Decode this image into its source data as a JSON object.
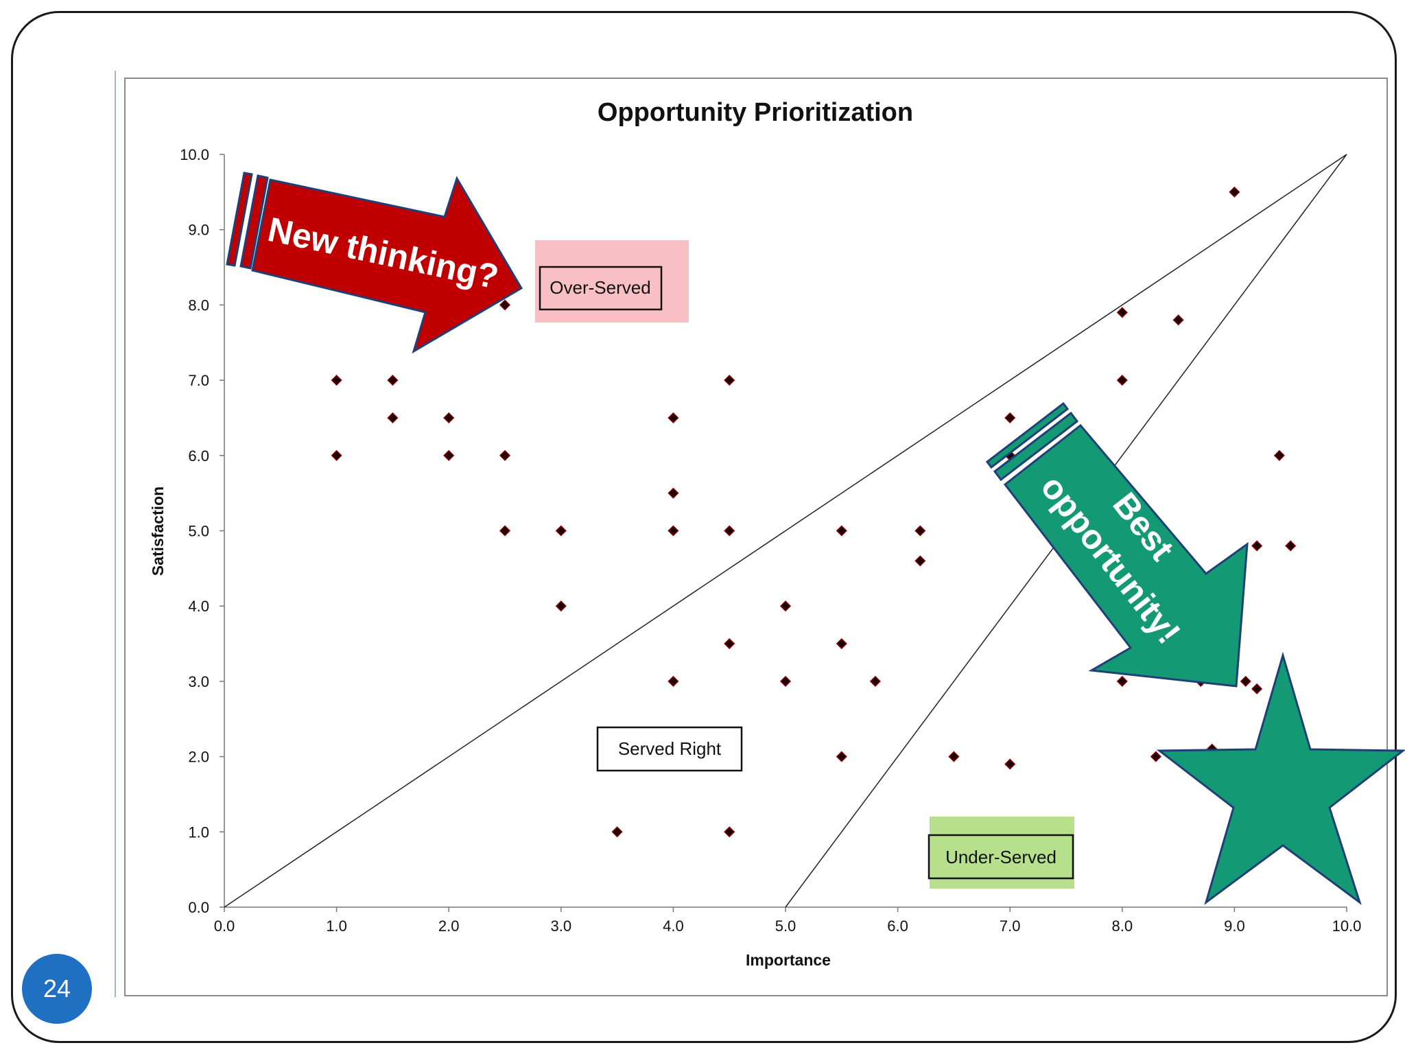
{
  "page_number": "24",
  "colors": {
    "frame": "#1a1a1a",
    "badge": "#1f6fc3",
    "marker": "#1a0000",
    "marker_outline": "#8b0000",
    "red_arrow": "#c00000",
    "green_arrow": "#139a74",
    "overserved_bg": "#f8c0c4",
    "underserved_bg": "#b6e08c"
  },
  "chart_data": {
    "type": "scatter",
    "title": "Opportunity Prioritization",
    "xlabel": "Importance",
    "ylabel": "Satisfaction",
    "xlim": [
      0,
      10
    ],
    "ylim": [
      0,
      10
    ],
    "x_ticks": [
      "0.0",
      "1.0",
      "2.0",
      "3.0",
      "4.0",
      "5.0",
      "6.0",
      "7.0",
      "8.0",
      "9.0",
      "10.0"
    ],
    "y_ticks": [
      "0.0",
      "1.0",
      "2.0",
      "3.0",
      "4.0",
      "5.0",
      "6.0",
      "7.0",
      "8.0",
      "9.0",
      "10.0"
    ],
    "grid": false,
    "points": [
      [
        1.0,
        7.0
      ],
      [
        1.0,
        6.0
      ],
      [
        1.5,
        7.0
      ],
      [
        1.5,
        6.5
      ],
      [
        2.0,
        6.5
      ],
      [
        2.0,
        6.0
      ],
      [
        2.5,
        8.0
      ],
      [
        2.5,
        6.0
      ],
      [
        2.5,
        5.0
      ],
      [
        3.0,
        5.0
      ],
      [
        3.0,
        4.0
      ],
      [
        3.5,
        1.0
      ],
      [
        4.0,
        6.5
      ],
      [
        4.0,
        5.5
      ],
      [
        4.0,
        5.0
      ],
      [
        4.0,
        3.0
      ],
      [
        4.5,
        7.0
      ],
      [
        4.5,
        5.0
      ],
      [
        4.5,
        3.5
      ],
      [
        4.5,
        1.0
      ],
      [
        5.0,
        4.0
      ],
      [
        5.0,
        3.0
      ],
      [
        5.5,
        5.0
      ],
      [
        5.5,
        3.5
      ],
      [
        5.5,
        2.0
      ],
      [
        5.8,
        3.0
      ],
      [
        6.2,
        5.0
      ],
      [
        6.2,
        4.6
      ],
      [
        6.5,
        2.0
      ],
      [
        7.0,
        6.5
      ],
      [
        7.0,
        6.0
      ],
      [
        7.0,
        1.9
      ],
      [
        8.0,
        7.9
      ],
      [
        8.0,
        7.0
      ],
      [
        8.0,
        3.0
      ],
      [
        8.5,
        7.8
      ],
      [
        8.3,
        2.0
      ],
      [
        8.7,
        3.0
      ],
      [
        8.8,
        2.1
      ],
      [
        9.0,
        9.5
      ],
      [
        9.1,
        3.0
      ],
      [
        9.2,
        4.8
      ],
      [
        9.2,
        2.9
      ],
      [
        9.4,
        6.0
      ],
      [
        9.5,
        4.8
      ]
    ],
    "lines": [
      {
        "from": [
          0,
          0
        ],
        "to": [
          10,
          10
        ]
      },
      {
        "from": [
          5,
          0
        ],
        "to": [
          10,
          10
        ]
      }
    ],
    "region_labels": {
      "over_served": "Over-Served",
      "served_right": "Served Right",
      "under_served": "Under-Served"
    },
    "annotations": {
      "red_arrow": "New thinking?",
      "green_arrow_line1": "Best",
      "green_arrow_line2": "opportunity!"
    }
  }
}
